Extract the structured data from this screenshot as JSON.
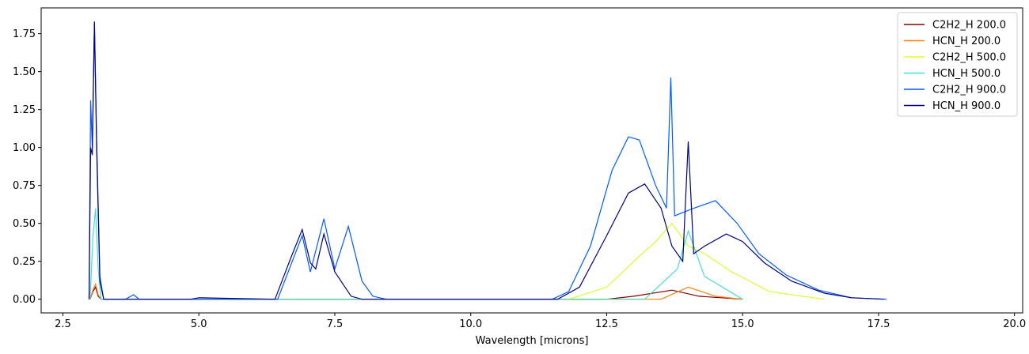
{
  "chart_data": {
    "type": "line",
    "title": "",
    "xlabel": "Wavelength [microns]",
    "ylabel": "",
    "xlim": [
      2.1,
      20.15
    ],
    "ylim": [
      -0.09,
      1.92
    ],
    "xticks": [
      2.5,
      5.0,
      7.5,
      10.0,
      12.5,
      15.0,
      17.5,
      20.0
    ],
    "xtick_labels": [
      "2.5",
      "5.0",
      "7.5",
      "10.0",
      "12.5",
      "15.0",
      "17.5",
      "20.0"
    ],
    "yticks": [
      0.0,
      0.25,
      0.5,
      0.75,
      1.0,
      1.25,
      1.5,
      1.75
    ],
    "ytick_labels": [
      "0.00",
      "0.25",
      "0.50",
      "0.75",
      "1.00",
      "1.25",
      "1.50",
      "1.75"
    ],
    "grid": false,
    "legend_position": "top-right",
    "series": [
      {
        "name": "C2H2_H 200.0",
        "color": "#800000",
        "points": [
          [
            3.0,
            0.0
          ],
          [
            3.05,
            0.05
          ],
          [
            3.1,
            0.08
          ],
          [
            3.15,
            0.02
          ],
          [
            3.2,
            0.0
          ],
          [
            12.5,
            0.0
          ],
          [
            13.0,
            0.02
          ],
          [
            13.7,
            0.06
          ],
          [
            14.2,
            0.02
          ],
          [
            15.0,
            0.0
          ]
        ]
      },
      {
        "name": "HCN_H 200.0",
        "color": "#ff7f0e",
        "points": [
          [
            3.0,
            0.0
          ],
          [
            3.05,
            0.06
          ],
          [
            3.1,
            0.1
          ],
          [
            3.15,
            0.03
          ],
          [
            3.2,
            0.0
          ],
          [
            13.5,
            0.0
          ],
          [
            14.0,
            0.08
          ],
          [
            14.5,
            0.02
          ],
          [
            15.0,
            0.0
          ]
        ]
      },
      {
        "name": "C2H2_H 500.0",
        "color": "#d4ff2a",
        "points": [
          [
            11.8,
            0.0
          ],
          [
            12.5,
            0.08
          ],
          [
            13.0,
            0.25
          ],
          [
            13.4,
            0.38
          ],
          [
            13.7,
            0.5
          ],
          [
            14.0,
            0.35
          ],
          [
            14.3,
            0.3
          ],
          [
            14.8,
            0.18
          ],
          [
            15.5,
            0.05
          ],
          [
            16.5,
            0.0
          ]
        ]
      },
      {
        "name": "HCN_H 500.0",
        "color": "#40e0d0",
        "points": [
          [
            3.0,
            0.0
          ],
          [
            3.05,
            0.4
          ],
          [
            3.1,
            0.6
          ],
          [
            3.15,
            0.2
          ],
          [
            3.2,
            0.0
          ],
          [
            13.2,
            0.0
          ],
          [
            13.8,
            0.2
          ],
          [
            14.0,
            0.45
          ],
          [
            14.3,
            0.15
          ],
          [
            15.0,
            0.0
          ]
        ]
      },
      {
        "name": "C2H2_H 900.0",
        "color": "#005aff",
        "points": [
          [
            2.98,
            0.0
          ],
          [
            3.01,
            1.31
          ],
          [
            3.04,
            1.0
          ],
          [
            3.08,
            1.82
          ],
          [
            3.12,
            1.05
          ],
          [
            3.18,
            0.15
          ],
          [
            3.25,
            0.0
          ],
          [
            3.65,
            0.0
          ],
          [
            3.8,
            0.03
          ],
          [
            3.9,
            0.0
          ],
          [
            6.45,
            0.0
          ],
          [
            6.9,
            0.42
          ],
          [
            7.05,
            0.18
          ],
          [
            7.3,
            0.53
          ],
          [
            7.5,
            0.2
          ],
          [
            7.75,
            0.48
          ],
          [
            8.0,
            0.12
          ],
          [
            8.2,
            0.02
          ],
          [
            8.45,
            0.0
          ],
          [
            11.5,
            0.0
          ],
          [
            11.8,
            0.05
          ],
          [
            12.2,
            0.35
          ],
          [
            12.6,
            0.85
          ],
          [
            12.9,
            1.07
          ],
          [
            13.1,
            1.05
          ],
          [
            13.4,
            0.75
          ],
          [
            13.6,
            0.6
          ],
          [
            13.68,
            1.46
          ],
          [
            13.75,
            0.55
          ],
          [
            14.1,
            0.6
          ],
          [
            14.5,
            0.65
          ],
          [
            14.9,
            0.5
          ],
          [
            15.3,
            0.3
          ],
          [
            15.8,
            0.16
          ],
          [
            16.4,
            0.06
          ],
          [
            17.0,
            0.01
          ],
          [
            17.65,
            0.0
          ]
        ]
      },
      {
        "name": "HCN_H 900.0",
        "color": "#00007f",
        "points": [
          [
            2.98,
            0.0
          ],
          [
            3.01,
            1.0
          ],
          [
            3.04,
            0.95
          ],
          [
            3.08,
            1.83
          ],
          [
            3.12,
            1.0
          ],
          [
            3.18,
            0.12
          ],
          [
            3.25,
            0.0
          ],
          [
            4.85,
            0.0
          ],
          [
            5.0,
            0.01
          ],
          [
            6.4,
            0.0
          ],
          [
            6.7,
            0.28
          ],
          [
            6.9,
            0.46
          ],
          [
            7.05,
            0.24
          ],
          [
            7.15,
            0.2
          ],
          [
            7.3,
            0.43
          ],
          [
            7.5,
            0.18
          ],
          [
            7.8,
            0.02
          ],
          [
            8.0,
            0.0
          ],
          [
            11.6,
            0.0
          ],
          [
            12.0,
            0.08
          ],
          [
            12.5,
            0.42
          ],
          [
            12.9,
            0.7
          ],
          [
            13.2,
            0.76
          ],
          [
            13.5,
            0.6
          ],
          [
            13.7,
            0.35
          ],
          [
            13.9,
            0.25
          ],
          [
            14.0,
            1.04
          ],
          [
            14.1,
            0.3
          ],
          [
            14.3,
            0.35
          ],
          [
            14.7,
            0.43
          ],
          [
            15.0,
            0.38
          ],
          [
            15.4,
            0.24
          ],
          [
            15.9,
            0.12
          ],
          [
            16.5,
            0.04
          ],
          [
            17.0,
            0.01
          ],
          [
            17.6,
            0.0
          ]
        ]
      }
    ]
  }
}
